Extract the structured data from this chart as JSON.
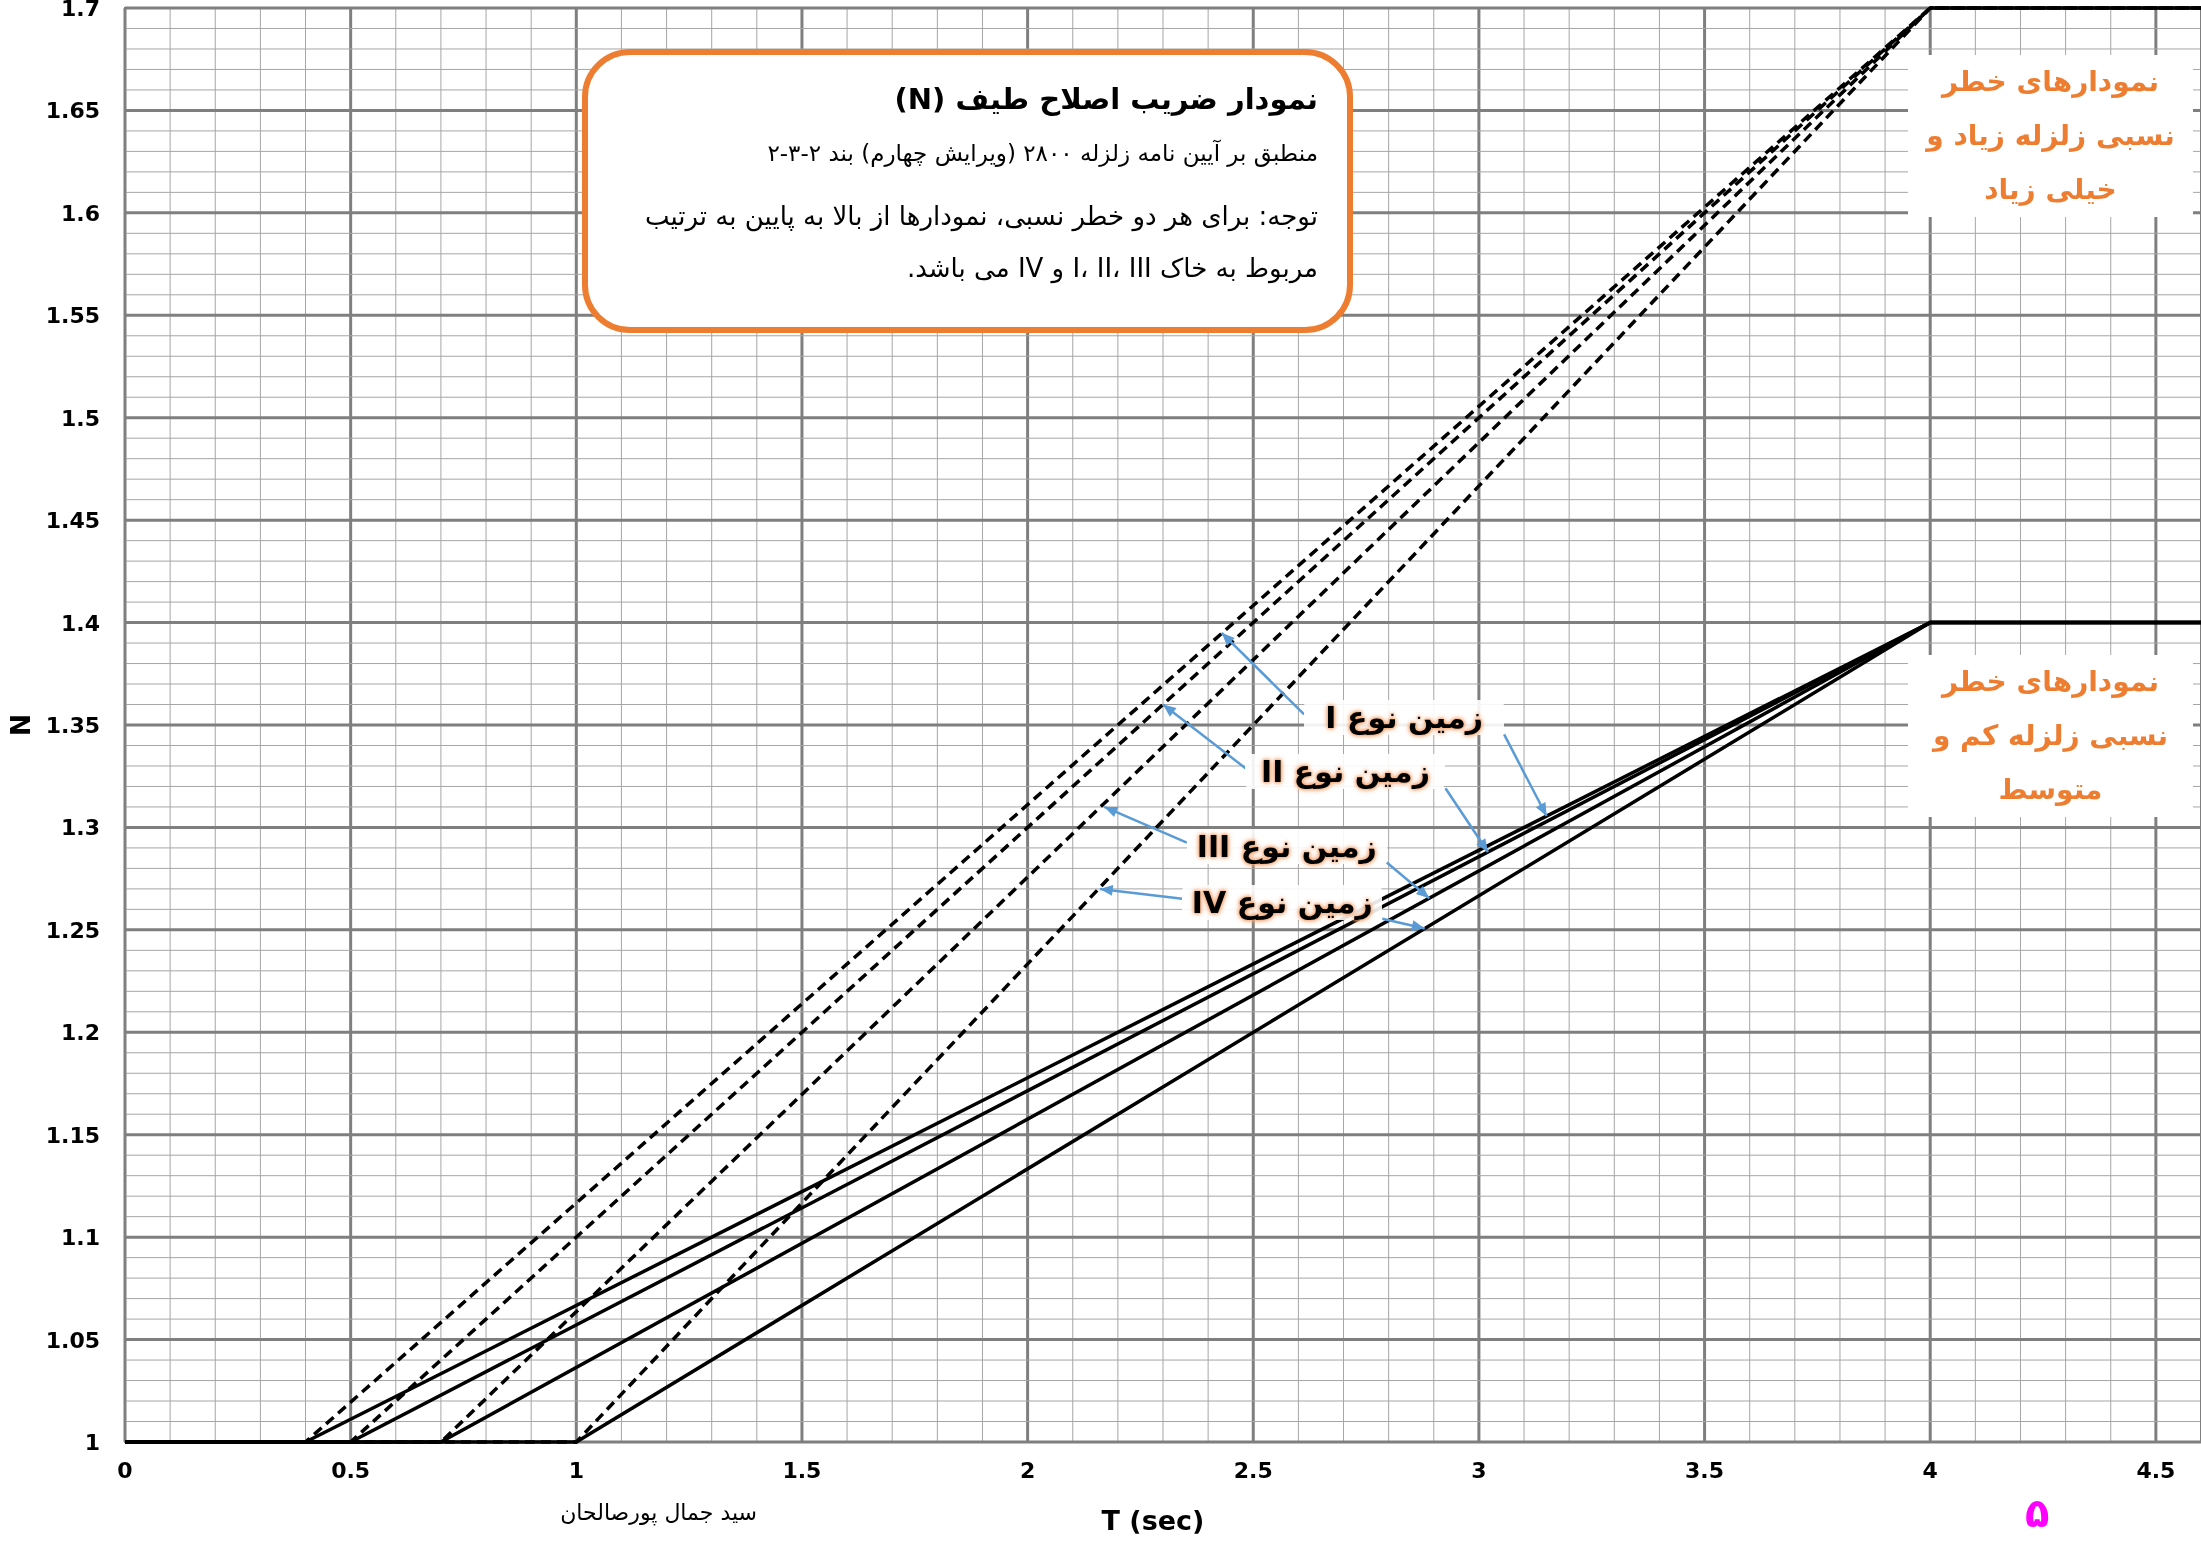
{
  "chart_data": {
    "type": "line",
    "title": "نمودار ضریب اصلاح طیف (N)",
    "subtitle": "منطبق بر آیین نامه زلزله ۲۸۰۰ (ویرایش چهارم) بند ۲-۳-۲",
    "xlabel": "T (sec)",
    "ylabel": "N",
    "xlim": [
      0,
      4.6
    ],
    "ylim": [
      1,
      1.7
    ],
    "xticks": [
      0,
      0.5,
      1,
      1.5,
      2,
      2.5,
      3,
      3.5,
      4,
      4.5
    ],
    "yticks": [
      1,
      1.05,
      1.1,
      1.15,
      1.2,
      1.25,
      1.3,
      1.35,
      1.4,
      1.45,
      1.5,
      1.55,
      1.6,
      1.65,
      1.7
    ],
    "grid": true,
    "series": [
      {
        "color": "#000000",
        "line_style": "dashed",
        "x": [
          0,
          0.4,
          4,
          4.6
        ],
        "values": [
          1,
          1,
          1.7,
          1.7
        ]
      },
      {
        "color": "#000000",
        "line_style": "dashed",
        "x": [
          0,
          0.5,
          4,
          4.6
        ],
        "values": [
          1,
          1,
          1.7,
          1.7
        ]
      },
      {
        "color": "#000000",
        "line_style": "dashed",
        "x": [
          0,
          0.7,
          4,
          4.6
        ],
        "values": [
          1,
          1,
          1.7,
          1.7
        ]
      },
      {
        "color": "#000000",
        "line_style": "dashed",
        "x": [
          0,
          1,
          4,
          4.6
        ],
        "values": [
          1,
          1,
          1.7,
          1.7
        ]
      },
      {
        "color": "#000000",
        "line_style": "solid",
        "x": [
          0,
          0.4,
          4,
          4.6
        ],
        "values": [
          1,
          1,
          1.4,
          1.4
        ]
      },
      {
        "color": "#000000",
        "line_style": "solid",
        "x": [
          0,
          0.5,
          4,
          4.6
        ],
        "values": [
          1,
          1,
          1.4,
          1.4
        ]
      },
      {
        "color": "#000000",
        "line_style": "solid",
        "x": [
          0,
          0.7,
          4,
          4.6
        ],
        "values": [
          1,
          1,
          1.4,
          1.4
        ]
      },
      {
        "color": "#000000",
        "line_style": "solid",
        "x": [
          0,
          1,
          4,
          4.6
        ],
        "values": [
          1,
          1,
          1.4,
          1.4
        ]
      }
    ],
    "annotations": [
      "توجه: برای هر دو خطر نسبی، نمودارها از بالا به پایین به ترتیب مربوط به خاک I، II، III و IV می باشد.",
      "نمودارهای خطر نسبی زلزله زیاد و خیلی زیاد",
      "نمودارهای خطر نسبی زلزله کم و متوسط",
      "سید جمال پورصالحان",
      "۵",
      {
        "text": "زمین نوع I",
        "x": 2.43,
        "y": 1.395
      },
      {
        "text": "زمین نوع II",
        "x": 2.3,
        "y": 1.36
      },
      {
        "text": "زمین نوع III",
        "x": 2.17,
        "y": 1.31
      },
      {
        "text": "زمین نوع IV",
        "x": 2.16,
        "y": 1.27
      }
    ]
  }
}
